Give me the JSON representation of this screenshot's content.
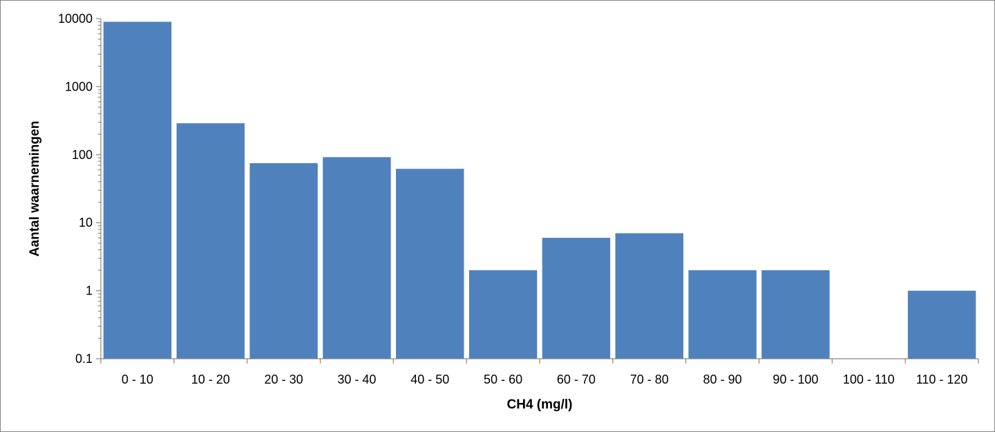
{
  "chart_data": {
    "type": "bar",
    "title": "",
    "xlabel": "CH4 (mg/l)",
    "ylabel": "Aantal waarnemingen",
    "y_scale": "log",
    "ylim": [
      0.1,
      10000
    ],
    "y_ticks": [
      "0.1",
      "1",
      "10",
      "100",
      "1000",
      "10000"
    ],
    "grid": false,
    "legend": "none",
    "bar_color": "#4F81BD",
    "categories": [
      "0 - 10",
      "10 - 20",
      "20 - 30",
      "30 - 40",
      "40 - 50",
      "50 - 60",
      "60 - 70",
      "70 - 80",
      "80 - 90",
      "90 - 100",
      "100 - 110",
      "110 - 120"
    ],
    "values": [
      9000,
      290,
      75,
      92,
      62,
      2,
      6,
      7,
      2,
      2,
      0,
      1
    ]
  }
}
